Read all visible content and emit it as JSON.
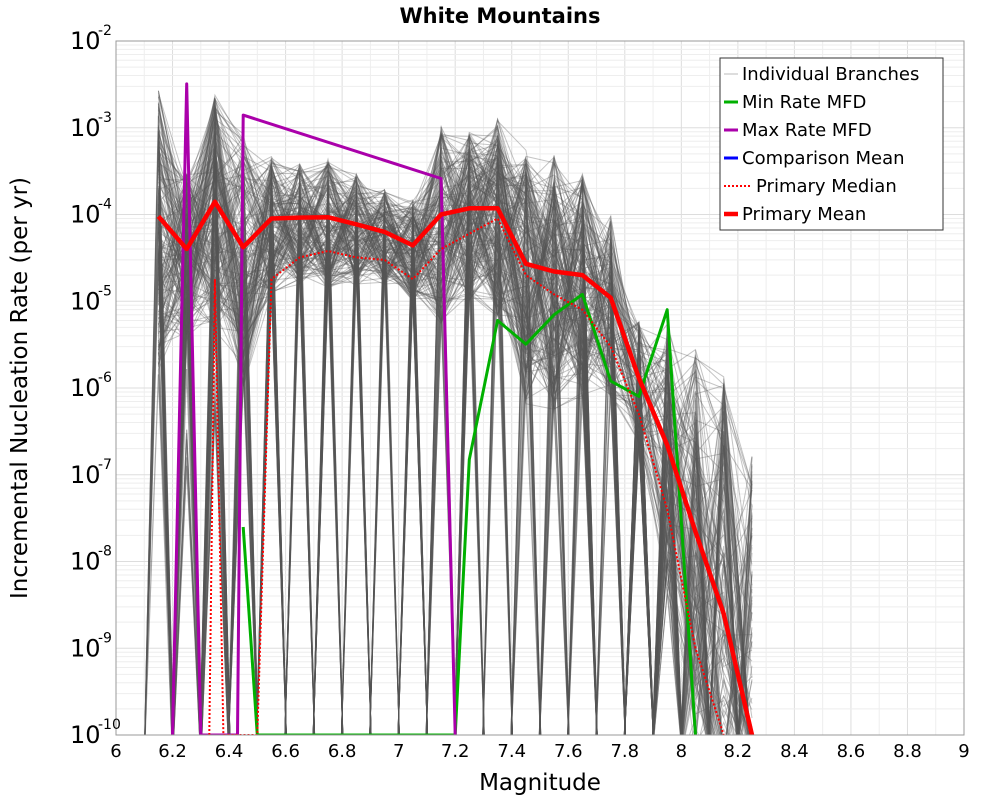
{
  "chart_data": {
    "type": "line",
    "title": "White Mountains",
    "xlabel": "Magnitude",
    "ylabel": "Incremental Nucleation Rate (per yr)",
    "xlim": [
      6,
      9
    ],
    "ylim": [
      1e-10,
      0.01
    ],
    "y_scale": "log",
    "grid": true,
    "legend_position": "top-right",
    "x_ticks": [
      "6",
      "6.2",
      "6.4",
      "6.6",
      "6.8",
      "7",
      "7.2",
      "7.4",
      "7.6",
      "7.8",
      "8",
      "8.2",
      "8.4",
      "8.6",
      "8.8",
      "9"
    ],
    "y_tick_exponents": [
      "-10",
      "-9",
      "-8",
      "-7",
      "-6",
      "-5",
      "-4",
      "-3",
      "-2"
    ],
    "y_tick_base": "10",
    "branch_mean_envelope": {
      "x": [
        6.15,
        6.25,
        6.35,
        6.45,
        6.55,
        6.65,
        6.75,
        6.85,
        6.95,
        7.05,
        7.15,
        7.25,
        7.35,
        7.45,
        7.55,
        7.65,
        7.75,
        7.85,
        7.95,
        8.05,
        8.15,
        8.25
      ],
      "upper": [
        0.0028,
        0.0003,
        0.0025,
        0.0009,
        0.0005,
        0.0004,
        0.00045,
        0.0003,
        0.0002,
        0.00015,
        0.0011,
        0.0009,
        0.0013,
        0.0006,
        0.0005,
        0.0003,
        0.0001,
        6e-06,
        6e-06,
        3e-06,
        1.5e-06,
        2e-07
      ]
    },
    "series": [
      {
        "name": "Individual Branches",
        "color": "#555555",
        "style": "thin"
      },
      {
        "name": "Min Rate MFD",
        "color": "#00b000",
        "style": "solid",
        "x": [
          6.45,
          6.5,
          7.2,
          7.25,
          7.35,
          7.45,
          7.55,
          7.65,
          7.75,
          7.85,
          7.95,
          8.05
        ],
        "y": [
          2.5e-08,
          1e-10,
          1e-10,
          1.5e-07,
          6e-06,
          3.2e-06,
          7e-06,
          1.2e-05,
          1.2e-06,
          8e-07,
          8e-06,
          1e-10
        ]
      },
      {
        "name": "Max Rate MFD",
        "color": "#aa00aa",
        "style": "solid",
        "x": [
          6.2,
          6.25,
          6.3,
          6.43,
          6.45,
          7.15,
          7.2
        ],
        "y": [
          1e-10,
          0.0032,
          1e-10,
          1e-10,
          0.0014,
          0.00026,
          1e-10
        ]
      },
      {
        "name": "Comparison Mean",
        "color": "#0000ff",
        "style": "solid",
        "x": [
          7.95,
          8.05,
          8.15,
          8.25
        ],
        "y": [
          2.2e-07,
          2.2e-08,
          2.5e-09,
          1e-10
        ]
      },
      {
        "name": "Primary Median",
        "color": "#ff0000",
        "style": "dotted",
        "x": [
          6.33,
          6.35,
          6.38,
          6.5,
          6.55,
          6.65,
          6.75,
          6.85,
          6.95,
          7.05,
          7.15,
          7.25,
          7.35,
          7.45,
          7.55,
          7.65,
          7.75,
          7.85,
          7.95,
          8.05,
          8.15
        ],
        "y": [
          1e-10,
          1.8e-05,
          1e-10,
          1e-10,
          1.8e-05,
          3.2e-05,
          3.8e-05,
          3.2e-05,
          3e-05,
          1.8e-05,
          4e-05,
          6e-05,
          9e-05,
          2e-05,
          1.2e-05,
          8e-06,
          3e-06,
          5e-07,
          4e-08,
          1e-09,
          1e-10
        ]
      },
      {
        "name": "Primary Mean",
        "color": "#ff0000",
        "style": "thick",
        "x": [
          6.15,
          6.25,
          6.35,
          6.45,
          6.55,
          6.65,
          6.75,
          6.85,
          6.95,
          7.05,
          7.15,
          7.25,
          7.35,
          7.45,
          7.55,
          7.65,
          7.75,
          7.85,
          7.95,
          8.05,
          8.15,
          8.25
        ],
        "y": [
          9.5e-05,
          4e-05,
          0.00014,
          4.2e-05,
          9e-05,
          9.2e-05,
          9.3e-05,
          7.7e-05,
          6.3e-05,
          4.4e-05,
          0.0001,
          0.000118,
          0.000118,
          2.7e-05,
          2.2e-05,
          2e-05,
          1.1e-05,
          1.3e-06,
          2.2e-07,
          2.2e-08,
          2.5e-09,
          1e-10
        ]
      }
    ]
  }
}
